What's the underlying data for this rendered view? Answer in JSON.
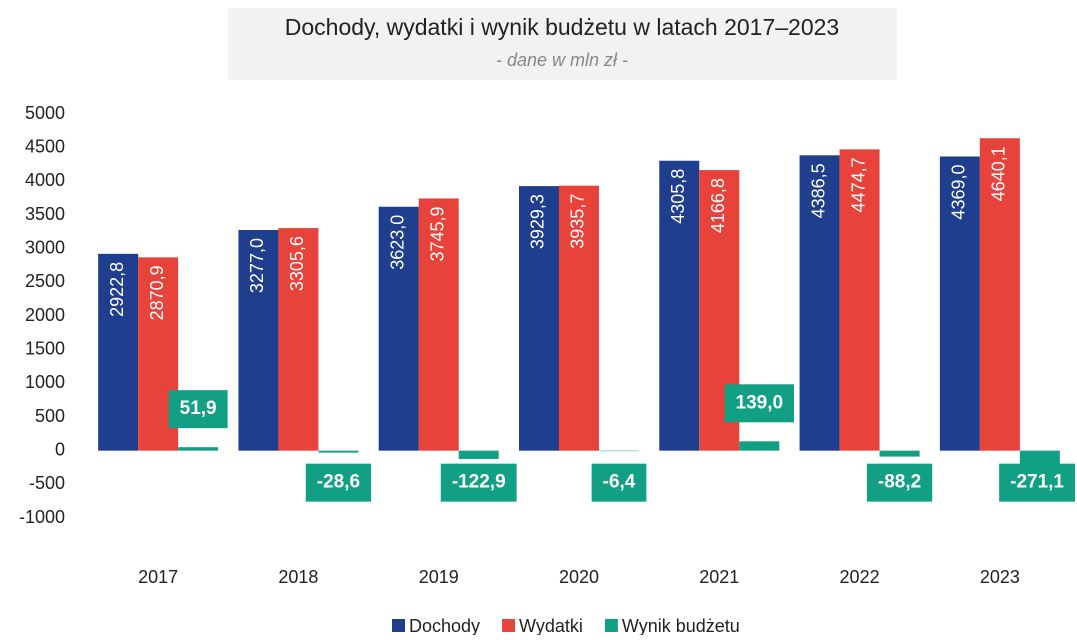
{
  "chart_data": {
    "type": "bar",
    "title": "Dochody, wydatki i wynik budżetu w latach 2017–2023",
    "subtitle": "- dane w mln zł -",
    "categories": [
      "2017",
      "2018",
      "2019",
      "2020",
      "2021",
      "2022",
      "2023"
    ],
    "series": [
      {
        "name": "Dochody",
        "color": "#1f3e8e",
        "values": [
          2922.8,
          3277.0,
          3623.0,
          3929.3,
          4305.8,
          4386.5,
          4369.0
        ],
        "value_labels": [
          "2922,8",
          "3277,0",
          "3623,0",
          "3929,3",
          "4305,8",
          "4386,5",
          "4369,0"
        ]
      },
      {
        "name": "Wydatki",
        "color": "#e8433a",
        "values": [
          2870.9,
          3305.6,
          3745.9,
          3935.7,
          4166.8,
          4474.7,
          4640.1
        ],
        "value_labels": [
          "2870,9",
          "3305,6",
          "3745,9",
          "3935,7",
          "4166,8",
          "4474,7",
          "4640,1"
        ]
      },
      {
        "name": "Wynik budżetu",
        "color": "#12a085",
        "values": [
          51.9,
          -28.6,
          -122.9,
          -6.4,
          139.0,
          -88.2,
          -271.1
        ],
        "value_labels": [
          "51,9",
          "-28,6",
          "-122,9",
          "-6,4",
          "139,0",
          "-88,2",
          "-271,1"
        ]
      }
    ],
    "ylim": [
      -1000,
      5000
    ],
    "yticks": [
      -1000,
      -500,
      0,
      500,
      1000,
      1500,
      2000,
      2500,
      3000,
      3500,
      4000,
      4500,
      5000
    ],
    "grid": false,
    "legend": "bottom"
  }
}
